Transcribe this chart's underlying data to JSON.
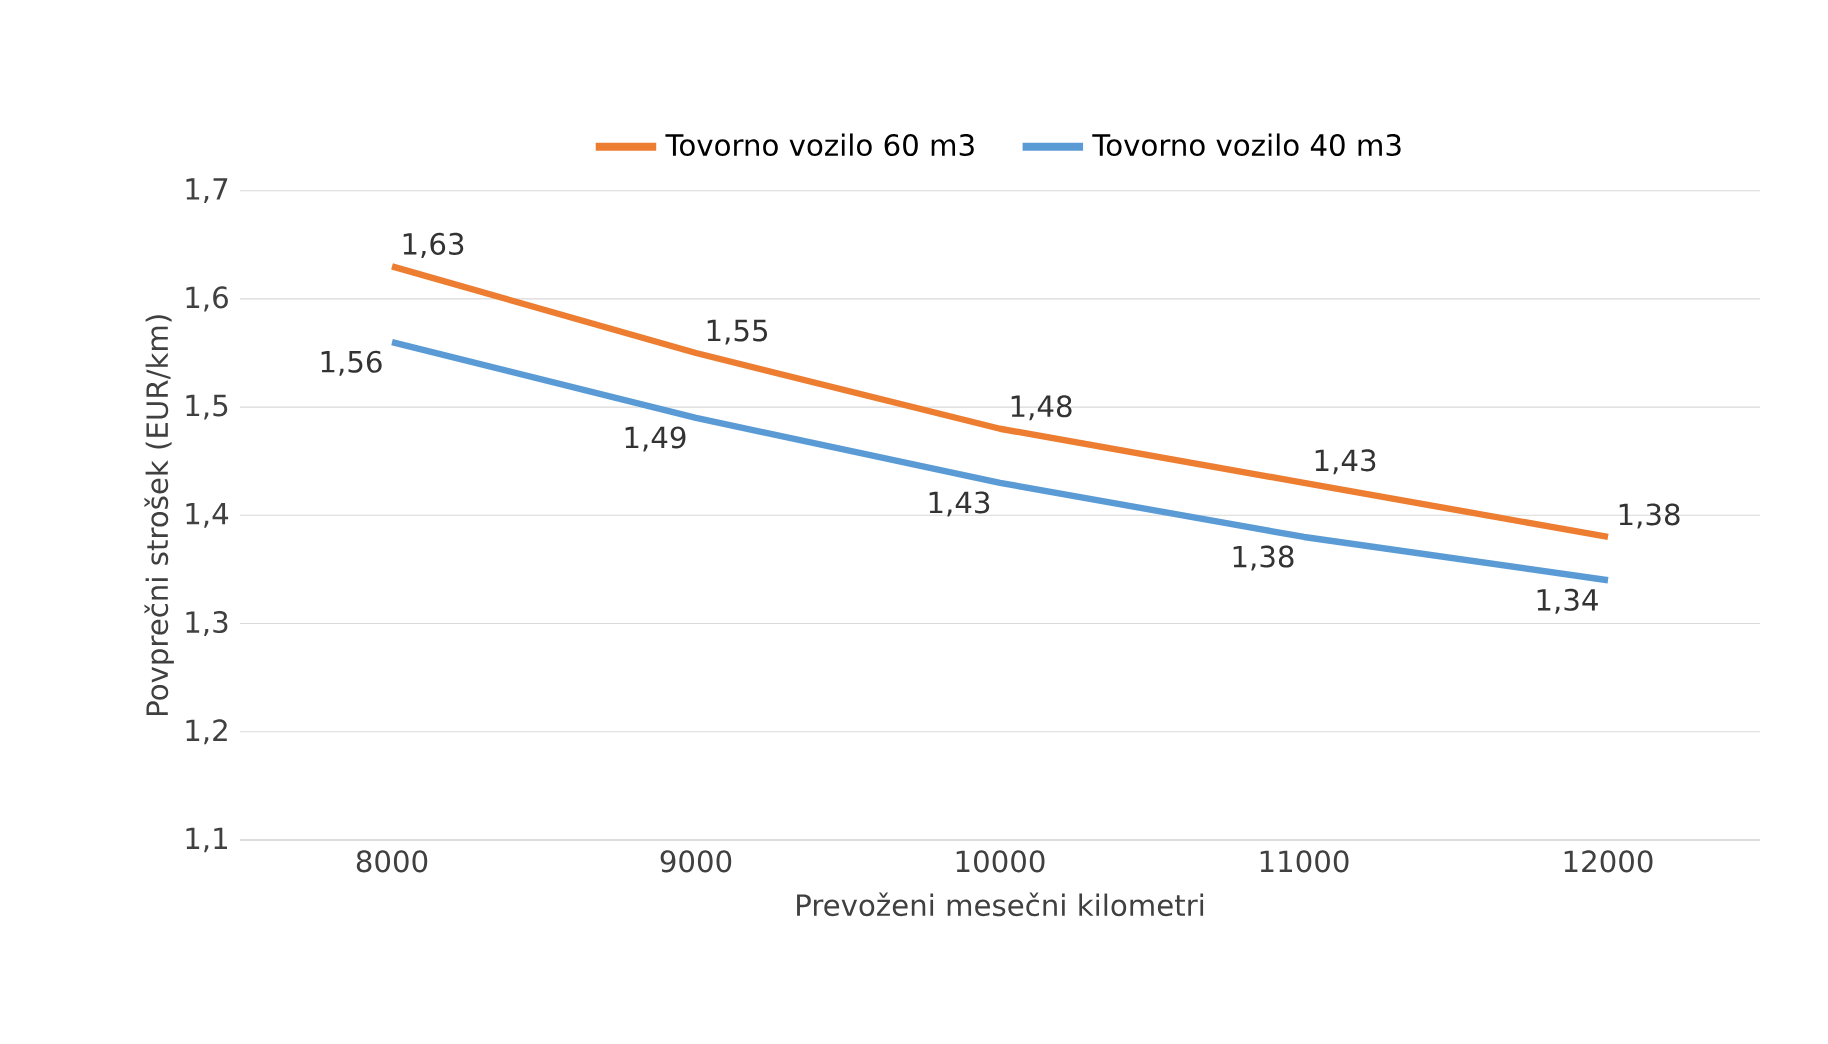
{
  "chart_data": {
    "type": "line",
    "xlabel": "Prevoženi mesečni kilometri",
    "ylabel": "Povprečni strošek (EUR/km)",
    "categories": [
      "8000",
      "9000",
      "10000",
      "11000",
      "12000"
    ],
    "series": [
      {
        "name": "Tovorno vozilo 60 m3",
        "color": "#ed7d31",
        "values": [
          1.63,
          1.55,
          1.48,
          1.43,
          1.38
        ],
        "value_labels": [
          "1,63",
          "1,55",
          "1,48",
          "1,43",
          "1,38"
        ]
      },
      {
        "name": "Tovorno vozilo 40 m3",
        "color": "#5b9bd5",
        "values": [
          1.56,
          1.49,
          1.43,
          1.38,
          1.34
        ],
        "value_labels": [
          "1,56",
          "1,49",
          "1,43",
          "1,38",
          "1,34"
        ]
      }
    ],
    "ylim": [
      1.1,
      1.7
    ],
    "yticks": [
      {
        "value": 1.1,
        "label": "1,1"
      },
      {
        "value": 1.2,
        "label": "1,2"
      },
      {
        "value": 1.3,
        "label": "1,3"
      },
      {
        "value": 1.4,
        "label": "1,4"
      },
      {
        "value": 1.5,
        "label": "1,5"
      },
      {
        "value": 1.6,
        "label": "1,6"
      },
      {
        "value": 1.7,
        "label": "1,7"
      }
    ],
    "grid": "y",
    "legend": "top",
    "marker": "none",
    "line_style": "solid"
  }
}
